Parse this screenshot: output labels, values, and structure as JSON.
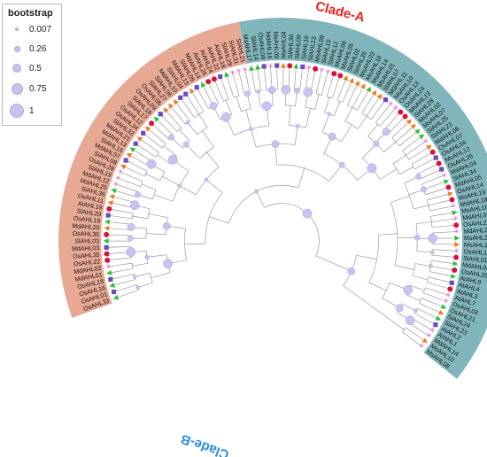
{
  "legend": {
    "title": "bootstrap",
    "entries": [
      {
        "label": "0.007",
        "value": 0.007
      },
      {
        "label": "0.26",
        "value": 0.26
      },
      {
        "label": "0.5",
        "value": 0.5
      },
      {
        "label": "0.75",
        "value": 0.75
      },
      {
        "label": "1",
        "value": 1
      }
    ]
  },
  "clades": [
    {
      "name": "Clade-A",
      "color": "#e8a994",
      "label_color": "#e8211b"
    },
    {
      "name": "Clade-B",
      "color": "#80b6bb",
      "label_color": "#2b8fe0"
    }
  ],
  "leaf_labels": [
    "OsAHL33",
    "OsAHL01",
    "OsAHL16",
    "OsAHL18",
    "MdAHL01",
    "MdAHL02",
    "OsAHL22",
    "OsAHL35",
    "MdAHL03",
    "SlAHL03",
    "OsAHL36",
    "MdAHL20",
    "OsAHL19",
    "SlAHL20",
    "AtAHL19",
    "OsAHL11",
    "SlAHL36",
    "MdAHL25",
    "MdAHL12",
    "SlAHL19",
    "OsAHL28",
    "SlAHL08",
    "MdAHL07",
    "SlAHL15",
    "MdAHL13",
    "MdAHL21",
    "SlAHL32",
    "OsAHL34",
    "OsAHL12",
    "SlAHL17",
    "SlAHL18",
    "OsAHL09",
    "OsAHL06",
    "SlAHL27",
    "SlAHL06",
    "MdAHL10",
    "SlAHL04",
    "MdAHL15",
    "SlAHL05",
    "MdAHL14",
    "AtAHL26",
    "AtAHL24",
    "AtAHL22",
    "AtAHL18",
    "SlAHL29",
    "SlAHL31",
    "SlAHL21",
    "MsAHL17",
    "SlAHL14",
    "OsAHL08",
    "MdAHL16",
    "MsAHL09",
    "MsAHL04",
    "SlAHL30",
    "SlAHL09",
    "SlAHL16",
    "SlAHL13",
    "MsAHL08",
    "SlAHL10",
    "SlAHL12",
    "MsAHL06",
    "MsAHL05",
    "SlAHL02",
    "SlAHL26",
    "MsAHL03",
    "MsAHL18",
    "MsAHL14",
    "MsAHL01",
    "SlAHL07",
    "MdAHL11",
    "MsAHL10",
    "OsAHL13",
    "OsAHL24",
    "MsAHL13",
    "SlAHL28",
    "MsAHL02",
    "MsAHL07",
    "SlAHL25",
    "SlAHL22",
    "MdAHL08",
    "OsAHL07",
    "OsAHL04",
    "MsAHL12",
    "OsAHL26",
    "MdAHL04",
    "SlAHL34",
    "MdAHL05",
    "OsAHL14",
    "MsAHL19",
    "MdAHL18",
    "MsAHL16",
    "MdAHL06",
    "OsAHL27",
    "MdAHL23",
    "MsAHL20",
    "MsAHL15",
    "OsAHL10",
    "SlAHL01",
    "MdAHL09",
    "OsAHL25",
    "AtAHL9",
    "AtAHL4",
    "AtAHL3",
    "AtAHL7",
    "OsAHL03",
    "OsAHL21",
    "SlAHL24",
    "SlAHL23",
    "AtAHL2",
    "AtAHL1",
    "MdAHL14",
    "MsAHL10",
    "MsAHL08"
  ],
  "colors": {
    "bootstrap_fill": "#c6c4ee",
    "bootstrap_stroke": "#aaa9df",
    "branch": "#9a9a9a",
    "marker_red": "#d8113a",
    "marker_pink": "#e35fc8",
    "marker_green": "#2bbf36",
    "marker_orange": "#ee7c1c",
    "marker_purple": "#6a4dbb"
  }
}
